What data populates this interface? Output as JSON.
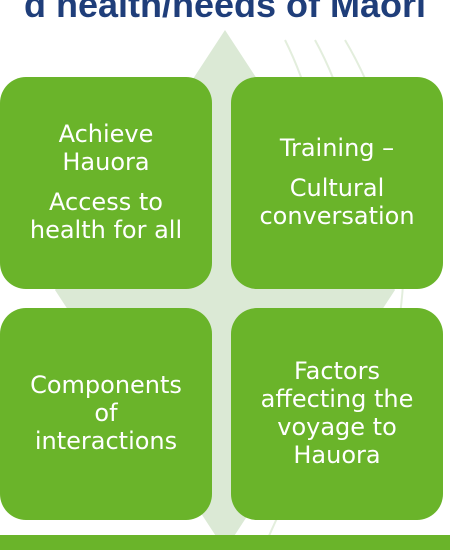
{
  "header": {
    "title": "d health/needs of Maori"
  },
  "boxes": [
    {
      "lines": [
        "Achieve",
        "Hauora"
      ],
      "lines2": [
        "Access to",
        "health for all"
      ]
    },
    {
      "lines": [
        "Training –"
      ],
      "lines2": [
        "Cultural",
        "conversation"
      ]
    },
    {
      "lines": [
        "Components",
        "of",
        "interactions"
      ]
    },
    {
      "lines": [
        "Factors",
        "affecting the",
        "voyage to",
        "Hauora"
      ]
    }
  ],
  "colors": {
    "box": "#6ab42a",
    "diamond": "#dbe9d5",
    "title": "#1f3e7a"
  }
}
